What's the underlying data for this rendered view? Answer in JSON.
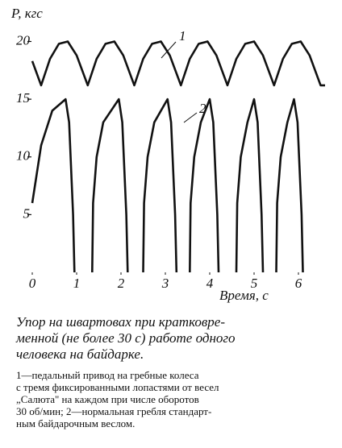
{
  "chart_data": {
    "type": "line",
    "y_label": "P, кгс",
    "x_label": "Время, с",
    "xlim": [
      0,
      6.8
    ],
    "ylim": [
      0,
      21.5
    ],
    "xticks": [
      0,
      1,
      2,
      3,
      4,
      5,
      6
    ],
    "yticks": [
      5,
      10,
      15,
      20
    ],
    "grid": false,
    "series": [
      {
        "name": "1",
        "color": "#111111",
        "x": [
          0,
          0.2,
          0.4,
          0.6,
          0.8,
          1.0,
          1.25,
          1.45,
          1.65,
          1.85,
          2.05,
          2.3,
          2.5,
          2.7,
          2.9,
          3.1,
          3.35,
          3.55,
          3.75,
          3.95,
          4.15,
          4.4,
          4.6,
          4.8,
          5.0,
          5.2,
          5.45,
          5.65,
          5.85,
          6.05,
          6.25,
          6.5,
          6.6
        ],
        "values": [
          18.3,
          16.2,
          18.5,
          19.8,
          20,
          18.8,
          16.2,
          18.5,
          19.8,
          20,
          18.8,
          16.2,
          18.5,
          19.8,
          20,
          18.8,
          16.2,
          18.5,
          19.8,
          20,
          18.8,
          16.2,
          18.5,
          19.8,
          20,
          18.8,
          16.2,
          18.5,
          19.8,
          20,
          18.8,
          16.2,
          16.2
        ]
      },
      {
        "name": "2",
        "color": "#111111",
        "x": [
          0,
          0.2,
          0.45,
          0.75,
          0.83,
          0.92,
          0.95,
          null,
          1.35,
          1.37,
          1.45,
          1.6,
          1.95,
          2.03,
          2.12,
          2.15,
          null,
          2.5,
          2.52,
          2.6,
          2.75,
          3.05,
          3.13,
          3.22,
          3.25,
          null,
          3.55,
          3.57,
          3.65,
          3.8,
          4.0,
          4.08,
          4.17,
          4.2,
          null,
          4.6,
          4.62,
          4.7,
          4.85,
          5.0,
          5.08,
          5.17,
          5.2,
          null,
          5.5,
          5.52,
          5.6,
          5.75,
          5.9,
          5.98,
          6.07,
          6.1
        ],
        "values": [
          6,
          11,
          14,
          15,
          13,
          5,
          0,
          null,
          0,
          6,
          10,
          13,
          15,
          13,
          5,
          0,
          null,
          0,
          6,
          10,
          13,
          15,
          13,
          5,
          0,
          null,
          0,
          6,
          10,
          13,
          15,
          13,
          5,
          0,
          null,
          0,
          6,
          10,
          13,
          15,
          13,
          5,
          0,
          null,
          0,
          6,
          10,
          13,
          15,
          13,
          5,
          0
        ]
      }
    ]
  },
  "caption": {
    "lines": [
      "Упор на швартовах при кратковре-",
      "менной (не более 30 с) работе одного",
      "человека на байдарке."
    ]
  },
  "note": {
    "lines": [
      "1—педальный привод на гребные колеса",
      "с тремя фиксированными лопастями от весел",
      "„Салюта\" на каждом при числе оборотов",
      "30 об/мин; 2—нормальная гребля стандарт-",
      "ным байдарочным веслом."
    ]
  }
}
